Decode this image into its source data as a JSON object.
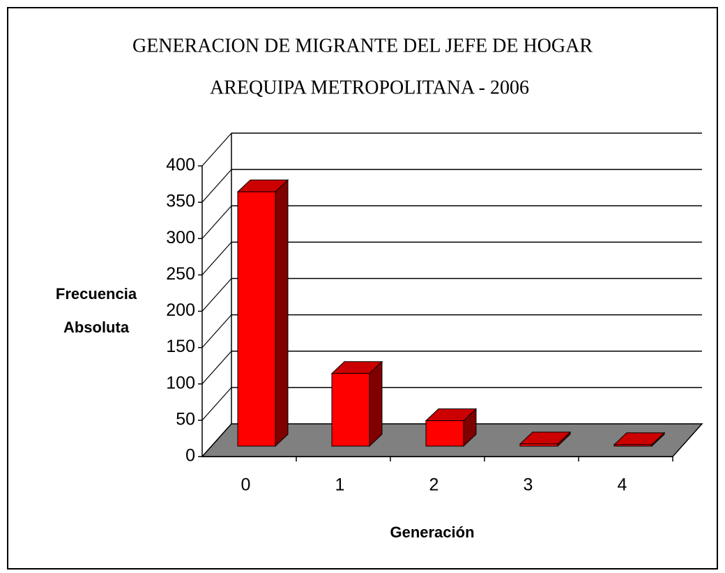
{
  "chart_data": {
    "type": "bar3d",
    "title": [
      "GENERACION DE MIGRANTE DEL JEFE DE HOGAR",
      "AREQUIPA METROPOLITANA  - 2006"
    ],
    "ylabel": [
      "Frecuencia",
      "Absoluta"
    ],
    "xlabel": "Generación",
    "categories": [
      "0",
      "1",
      "2",
      "3",
      "4"
    ],
    "values": [
      350,
      100,
      35,
      3,
      2
    ],
    "color": "#ff0000",
    "ylim": [
      0,
      400
    ],
    "yticks": [
      0,
      50,
      100,
      150,
      200,
      250,
      300,
      350,
      400
    ],
    "grid": true
  }
}
